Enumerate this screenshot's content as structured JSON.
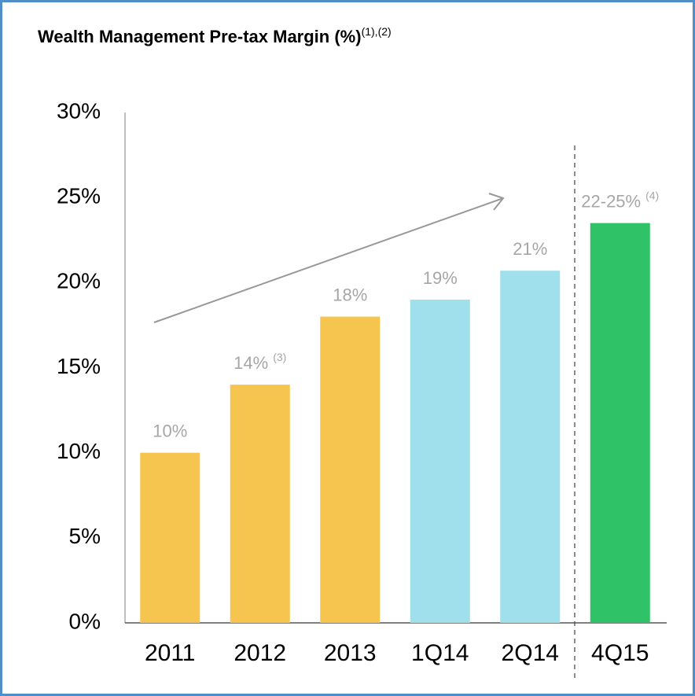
{
  "chart_data": {
    "type": "bar",
    "title": "Wealth Management Pre-tax Margin (%)",
    "title_note": "(1),(2)",
    "categories": [
      "2011",
      "2012",
      "2013",
      "1Q14",
      "2Q14",
      "4Q15"
    ],
    "values": [
      10,
      14,
      18,
      19,
      20.7,
      23.5
    ],
    "value_labels": [
      "10%",
      "14%",
      "18%",
      "19%",
      "21%",
      "22-25%"
    ],
    "value_label_notes": [
      null,
      "(3)",
      null,
      null,
      null,
      "(4)"
    ],
    "colors": [
      "#f5c54f",
      "#f5c54f",
      "#f5c54f",
      "#a0dfec",
      "#a0dfec",
      "#30c266"
    ],
    "ylim": [
      0,
      30
    ],
    "yticks": [
      {
        "value": 0,
        "label": "0%"
      },
      {
        "value": 5,
        "label": "5%"
      },
      {
        "value": 10,
        "label": "10%"
      },
      {
        "value": 15,
        "label": "15%"
      },
      {
        "value": 20,
        "label": "20%"
      },
      {
        "value": 25,
        "label": "25%"
      },
      {
        "value": 30,
        "label": "30%"
      }
    ],
    "grid": false
  }
}
